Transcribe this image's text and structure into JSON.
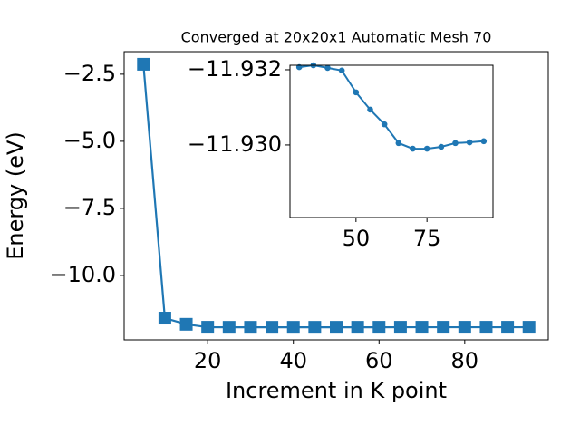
{
  "chart_data": [
    {
      "type": "line",
      "marker": "square",
      "color": "#1f77b4",
      "title": "Converged at 20x20x1 Automatic Mesh 70",
      "xlabel": "Increment in K point",
      "ylabel": "Energy (eV)",
      "x": [
        5,
        10,
        15,
        20,
        25,
        30,
        35,
        40,
        45,
        50,
        55,
        60,
        65,
        70,
        75,
        80,
        85,
        90,
        95
      ],
      "values": [
        -2.13,
        -11.59,
        -11.82,
        -11.93,
        -11.932,
        -11.93207,
        -11.93212,
        -11.93205,
        -11.93198,
        -11.9314,
        -11.93094,
        -11.93055,
        -11.93005,
        -11.9299,
        -11.9299,
        -11.92995,
        -11.93005,
        -11.93007,
        -11.9301
      ],
      "xlim": [
        0.5,
        99.5
      ],
      "ylim": [
        -12.4,
        -1.66
      ],
      "xticks": [
        20,
        40,
        60,
        80
      ],
      "yticks": [
        {
          "value": -2.5,
          "label": "−2.5"
        },
        {
          "value": -5.0,
          "label": "−5.0"
        },
        {
          "value": -7.5,
          "label": "−7.5"
        },
        {
          "value": -10.0,
          "label": "−10.0"
        }
      ]
    },
    {
      "type": "line",
      "marker": "circle",
      "color": "#1f77b4",
      "x": [
        30,
        35,
        40,
        45,
        50,
        55,
        60,
        65,
        70,
        75,
        80,
        85,
        90,
        95
      ],
      "values": [
        -11.93207,
        -11.93212,
        -11.93205,
        -11.93198,
        -11.9314,
        -11.93094,
        -11.93055,
        -11.93005,
        -11.9299,
        -11.9299,
        -11.92995,
        -11.93005,
        -11.93007,
        -11.9301
      ],
      "xlim": [
        26.75,
        98.25
      ],
      "ylim": [
        -11.92807,
        -11.93212
      ],
      "xticks": [
        50,
        75
      ],
      "yticks": [
        {
          "value": -11.932,
          "label": "−11.932"
        },
        {
          "value": -11.93,
          "label": "−11.930"
        }
      ]
    }
  ]
}
